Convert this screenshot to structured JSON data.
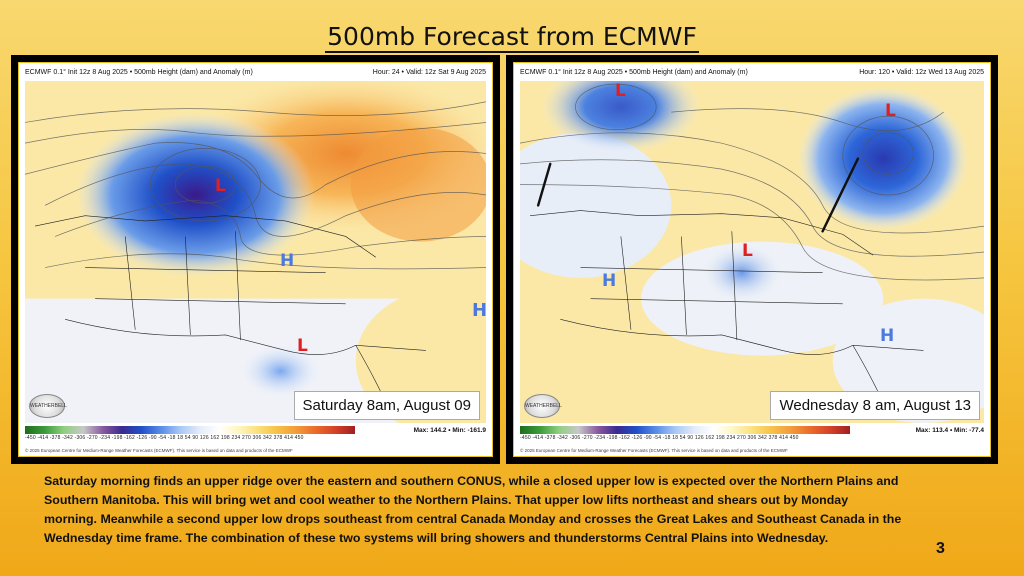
{
  "title": "500mb Forecast from ECMWF",
  "panels": [
    {
      "header_left": "ECMWF 0.1° Init 12z 8 Aug 2025 • 500mb Height (dam) and Anomaly (m)",
      "header_right": "Hour: 24 • Valid: 12z Sat 9 Aug 2025",
      "caption": "Saturday 8am, August 09",
      "max_min": "Max: 144.2 • Min: -161.9",
      "logo_text": "WEATHERBELL"
    },
    {
      "header_left": "ECMWF 0.1° Init 12z 8 Aug 2025 • 500mb Height (dam) and Anomaly (m)",
      "header_right": "Hour: 120 • Valid: 12z Wed 13 Aug 2025",
      "caption": "Wednesday 8 am, August 13",
      "max_min": "Max: 113.4 • Min: -77.4",
      "logo_text": "WEATHERBELL"
    }
  ],
  "scale_ticks": "-450 -414 -378 -342 -306 -270 -234 -198 -162 -126 -90 -54 -18 18 54 90 126 162 198 234 270 306 342 378 414 450",
  "footer_text": "© 2025 European Centre for Medium-Range Weather Forecasts (ECMWF). This service is based on data and products of the ECMWF",
  "markers": {
    "low": "L",
    "high": "H"
  },
  "body_text": "Saturday morning finds an upper ridge over the eastern and southern CONUS, while a closed upper low is expected over the Northern Plains and Southern Manitoba. This will bring wet and cool weather to the Northern Plains. That upper low lifts northeast and shears out by Monday morning. Meanwhile a second upper low drops southeast from central Canada Monday and crosses the Great Lakes and Southeast Canada in the Wednesday time frame. The combination of these two systems will bring showers and thunderstorms Central Plains into Wednesday.",
  "page_number": "3",
  "colors": {
    "low_marker": "#e02020",
    "high_marker": "#4a7ae0",
    "background": "#f6c640"
  }
}
